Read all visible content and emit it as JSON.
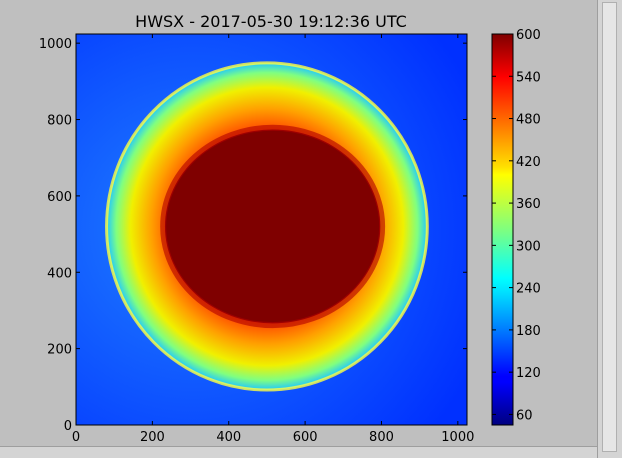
{
  "chart_data": {
    "type": "heatmap",
    "title": "HWSX - 2017-05-30 19:12:36 UTC",
    "xlabel": "",
    "ylabel": "",
    "xlim": [
      0,
      1024
    ],
    "ylim": [
      0,
      1024
    ],
    "x_ticks": [
      "0",
      "200",
      "400",
      "600",
      "800",
      "1000"
    ],
    "y_ticks": [
      "0",
      "200",
      "400",
      "600",
      "800",
      "1000"
    ],
    "colormap": "jet",
    "colorbar": {
      "range": [
        45,
        600
      ],
      "ticks": [
        "60",
        "120",
        "180",
        "240",
        "300",
        "360",
        "420",
        "480",
        "540",
        "600"
      ]
    },
    "features": {
      "saturated_disk": {
        "center": [
          515,
          520
        ],
        "radius": 235,
        "value": 600
      },
      "halo": {
        "center": [
          500,
          520
        ],
        "radius": 420,
        "value_range": [
          300,
          560
        ]
      },
      "background_value": 110
    }
  },
  "colors": {
    "background": "#bfbfbf"
  }
}
